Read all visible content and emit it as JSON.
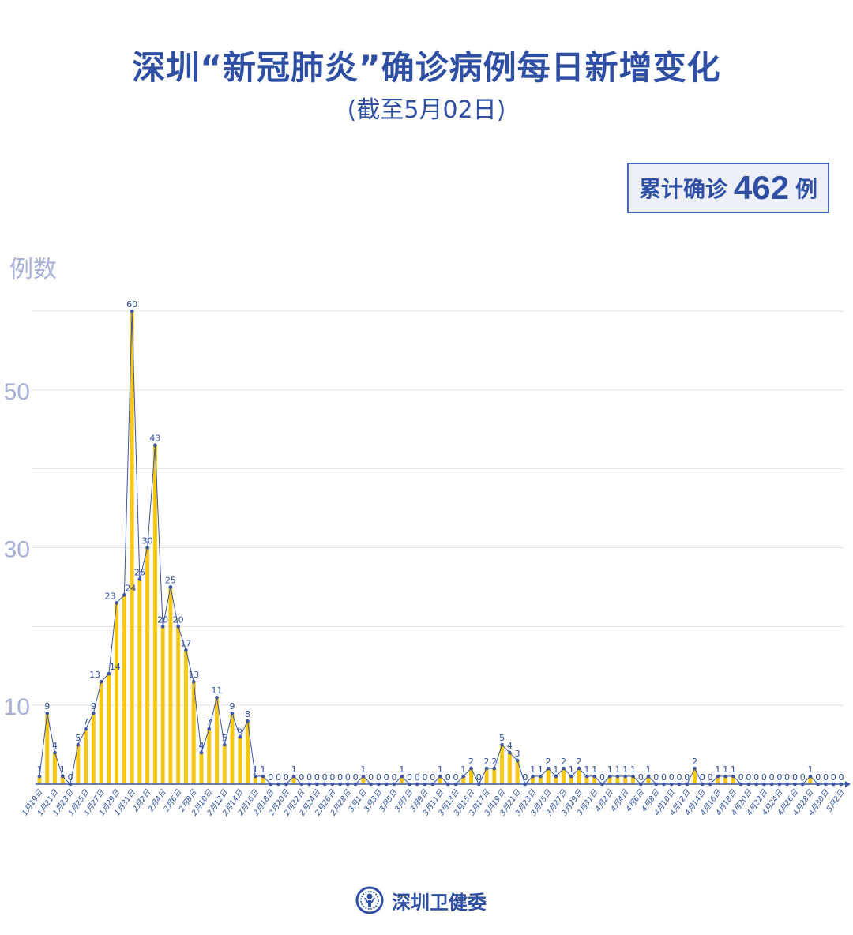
{
  "title": "深圳“新冠肺炎”确诊病例每日新增变化",
  "subtitle": "(截至5月02日)",
  "total": {
    "label": "累计确诊",
    "value": "462",
    "unit": "例"
  },
  "footer": {
    "org": "深圳卫健委",
    "logo_icon": "health-commission-emblem"
  },
  "colors": {
    "bar": "#f7c80f",
    "line": "#3b54a6",
    "text": "#2e4fa3",
    "axis_label": "#a7b0d8",
    "grid": "#e3e3e3"
  },
  "chart_data": {
    "type": "bar",
    "ylabel": "例数",
    "ylim": [
      0,
      60
    ],
    "yticks": [
      10,
      30,
      50
    ],
    "grid": true,
    "overlay": "line-with-markers",
    "categories": [
      "1月19日",
      "1月20日",
      "1月21日",
      "1月22日",
      "1月23日",
      "1月24日",
      "1月25日",
      "1月26日",
      "1月27日",
      "1月28日",
      "1月29日",
      "1月30日",
      "1月31日",
      "2月1日",
      "2月2日",
      "2月3日",
      "2月4日",
      "2月5日",
      "2月6日",
      "2月7日",
      "2月8日",
      "2月9日",
      "2月10日",
      "2月11日",
      "2月12日",
      "2月13日",
      "2月14日",
      "2月15日",
      "2月16日",
      "2月17日",
      "2月18日",
      "2月19日",
      "2月20日",
      "2月21日",
      "2月22日",
      "2月23日",
      "2月24日",
      "2月25日",
      "2月26日",
      "2月27日",
      "2月28日",
      "2月29日",
      "3月1日",
      "3月2日",
      "3月3日",
      "3月4日",
      "3月5日",
      "3月6日",
      "3月7日",
      "3月8日",
      "3月9日",
      "3月10日",
      "3月11日",
      "3月12日",
      "3月13日",
      "3月14日",
      "3月15日",
      "3月16日",
      "3月17日",
      "3月18日",
      "3月19日",
      "3月20日",
      "3月21日",
      "3月22日",
      "3月23日",
      "3月24日",
      "3月25日",
      "3月26日",
      "3月27日",
      "3月28日",
      "3月29日",
      "3月30日",
      "3月31日",
      "4月1日",
      "4月2日",
      "4月3日",
      "4月4日",
      "4月5日",
      "4月6日",
      "4月7日",
      "4月8日",
      "4月9日",
      "4月10日",
      "4月11日",
      "4月12日",
      "4月13日",
      "4月14日",
      "4月15日",
      "4月16日",
      "4月17日",
      "4月18日",
      "4月19日",
      "4月20日",
      "4月21日",
      "4月22日",
      "4月23日",
      "4月24日",
      "4月25日",
      "4月26日",
      "4月27日",
      "4月28日",
      "4月29日",
      "4月30日",
      "5月1日",
      "5月2日"
    ],
    "values": [
      1,
      9,
      4,
      1,
      0,
      5,
      7,
      9,
      13,
      14,
      23,
      24,
      60,
      26,
      30,
      43,
      20,
      25,
      20,
      17,
      13,
      4,
      7,
      11,
      5,
      9,
      6,
      8,
      1,
      1,
      0,
      0,
      0,
      1,
      0,
      0,
      0,
      0,
      0,
      0,
      0,
      0,
      1,
      0,
      0,
      0,
      0,
      1,
      0,
      0,
      0,
      0,
      1,
      0,
      0,
      1,
      2,
      0,
      2,
      2,
      5,
      4,
      3,
      0,
      1,
      1,
      2,
      1,
      2,
      1,
      2,
      1,
      1,
      0,
      1,
      1,
      1,
      1,
      0,
      1,
      0,
      0,
      0,
      0,
      0,
      2,
      0,
      0,
      1,
      1,
      1,
      0,
      0,
      0,
      0,
      0,
      0,
      0,
      0,
      0,
      1,
      0,
      0,
      0,
      0
    ],
    "tick_label_every": 2
  }
}
